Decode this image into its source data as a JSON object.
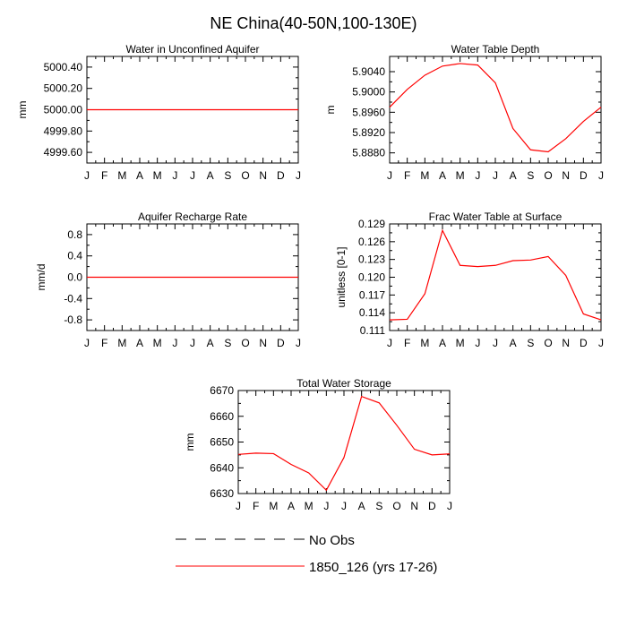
{
  "title": "NE China(40-50N,100-130E)",
  "colors": {
    "series": "#ff0000",
    "axes": "#000000",
    "background": "#ffffff"
  },
  "legend": {
    "placement": "bottom",
    "entries": [
      {
        "label": "No Obs",
        "style": "dashed",
        "color": "#000000"
      },
      {
        "label": "1850_126 (yrs 17-26)",
        "style": "solid",
        "color": "#ff0000"
      }
    ]
  },
  "chart_data": [
    {
      "type": "line",
      "title": "Water in Unconfined Aquifer",
      "xlabel": "",
      "ylabel": "mm",
      "categories": [
        "J",
        "F",
        "M",
        "A",
        "M",
        "J",
        "J",
        "A",
        "S",
        "O",
        "N",
        "D",
        "J"
      ],
      "ylim": [
        4999.5,
        5000.5
      ],
      "yticks": [
        4999.6,
        4999.8,
        5000.0,
        5000.2,
        5000.4
      ],
      "ytick_labels": [
        "4999.60",
        "4999.80",
        "5000.00",
        "5000.20",
        "5000.40"
      ],
      "series": [
        {
          "color": "#ff0000",
          "values": [
            5000,
            5000,
            5000,
            5000,
            5000,
            5000,
            5000,
            5000,
            5000,
            5000,
            5000,
            5000,
            5000
          ]
        }
      ]
    },
    {
      "type": "line",
      "title": "Water Table Depth",
      "xlabel": "",
      "ylabel": "m",
      "categories": [
        "J",
        "F",
        "M",
        "A",
        "M",
        "J",
        "J",
        "A",
        "S",
        "O",
        "N",
        "D",
        "J"
      ],
      "ylim": [
        5.886,
        5.907
      ],
      "yticks": [
        5.888,
        5.892,
        5.896,
        5.9,
        5.904
      ],
      "ytick_labels": [
        "5.8880",
        "5.8920",
        "5.8960",
        "5.9000",
        "5.9040"
      ],
      "series": [
        {
          "color": "#ff0000",
          "values": [
            5.897,
            5.9005,
            5.9033,
            5.9051,
            5.9056,
            5.9053,
            5.9018,
            5.8928,
            5.8886,
            5.8882,
            5.8908,
            5.8942,
            5.897
          ]
        }
      ]
    },
    {
      "type": "line",
      "title": "Aquifer Recharge Rate",
      "xlabel": "",
      "ylabel": "mm/d",
      "categories": [
        "J",
        "F",
        "M",
        "A",
        "M",
        "J",
        "J",
        "A",
        "S",
        "O",
        "N",
        "D",
        "J"
      ],
      "ylim": [
        -1.0,
        1.0
      ],
      "yticks": [
        -0.8,
        -0.4,
        0.0,
        0.4,
        0.8
      ],
      "ytick_labels": [
        "-0.8",
        "-0.4",
        "0.0",
        "0.4",
        "0.8"
      ],
      "series": [
        {
          "color": "#ff0000",
          "values": [
            0,
            0,
            0,
            0,
            0,
            0,
            0,
            0,
            0,
            0,
            0,
            0,
            0
          ]
        }
      ]
    },
    {
      "type": "line",
      "title": "Frac Water Table at Surface",
      "xlabel": "",
      "ylabel": "unitless [0-1]",
      "categories": [
        "J",
        "F",
        "M",
        "A",
        "M",
        "J",
        "J",
        "A",
        "S",
        "O",
        "N",
        "D",
        "J"
      ],
      "ylim": [
        0.111,
        0.129
      ],
      "yticks": [
        0.111,
        0.114,
        0.117,
        0.12,
        0.123,
        0.126,
        0.129
      ],
      "ytick_labels": [
        "0.111",
        "0.114",
        "0.117",
        "0.120",
        "0.123",
        "0.126",
        "0.129"
      ],
      "series": [
        {
          "color": "#ff0000",
          "values": [
            0.1128,
            0.1129,
            0.1172,
            0.1279,
            0.122,
            0.1218,
            0.122,
            0.1228,
            0.1229,
            0.1235,
            0.1203,
            0.1138,
            0.1128
          ]
        }
      ]
    },
    {
      "type": "line",
      "title": "Total Water Storage",
      "xlabel": "",
      "ylabel": "mm",
      "categories": [
        "J",
        "F",
        "M",
        "A",
        "M",
        "J",
        "J",
        "A",
        "S",
        "O",
        "N",
        "D",
        "J"
      ],
      "ylim": [
        6630,
        6670
      ],
      "yticks": [
        6630,
        6640,
        6650,
        6660,
        6670
      ],
      "ytick_labels": [
        "6630",
        "6640",
        "6650",
        "6660",
        "6670"
      ],
      "series": [
        {
          "color": "#ff0000",
          "values": [
            6645.2,
            6645.7,
            6645.5,
            6641.3,
            6638,
            6631.3,
            6644,
            6667.7,
            6665.2,
            6656.5,
            6647.2,
            6645,
            6645.4
          ]
        }
      ]
    }
  ]
}
